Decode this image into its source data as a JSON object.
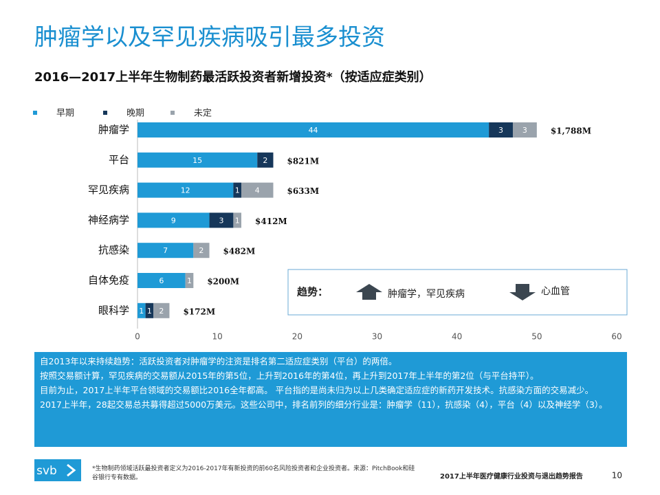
{
  "page": {
    "heading": "肿瘤学以及罕见疾病吸引最多投资"
  },
  "chart_data": {
    "type": "stacked-barh",
    "title": "2016—2017上半年生物制药最活跃投资者新增投资*（按适应症类别）",
    "categories": [
      "肿瘤学",
      "平台",
      "罕见疾病",
      "神经病学",
      "抗感染",
      "自体免疫",
      "眼科学"
    ],
    "series": [
      {
        "name": "早期",
        "color": "#1f9ad6",
        "values": [
          44,
          15,
          12,
          9,
          7,
          6,
          1
        ]
      },
      {
        "name": "晚期",
        "color": "#16375a",
        "values": [
          3,
          2,
          1,
          3,
          null,
          null,
          1
        ]
      },
      {
        "name": "未定",
        "color": "#9aa3ac",
        "values": [
          3,
          null,
          4,
          1,
          2,
          1,
          2
        ]
      }
    ],
    "amount_labels": [
      "$1,788M",
      "$821M",
      "$633M",
      "$412M",
      "$482M",
      "$200M",
      "$172M"
    ],
    "xlim": [
      0,
      60
    ],
    "xticks": [
      0,
      10,
      20,
      30,
      40,
      50,
      60
    ],
    "trend": {
      "label": "趋势：",
      "up": "肿瘤学，罕见疾病",
      "down": "心血管"
    }
  },
  "notes": [
    "自2013年以来持续趋势：活跃投资者对肿瘤学的注资是排名第二适应症类别（平台）的两倍。",
    "按照交易额计算，罕见疾病的交易额从2015年的第5位，上升到2016年的第4位，再上升到2017年上半年的第2位（与平台持平）。",
    "目前为止，2017上半年平台领域的交易额比2016全年都高。 平台指的是尚未归为以上几类确定适应症的新药开发技术。抗感染方面的交易减少。",
    "2017上半年，28起交易总共募得超过5000万美元。这些公司中，排名前列的细分行业是：肿瘤学（11），抗感染（4），平台（4）以及神经学（3）。"
  ],
  "footer": {
    "logo": "svb",
    "footnote": "*生物制药领域活跃最投资者定义为2016-2017年有新投资的前60名风险投资者和企业投资者。来源：PitchBook和硅谷银行专有数据。",
    "report": "2017上半年医疗健康行业投资与退出趋势报告",
    "page_number": "10"
  }
}
